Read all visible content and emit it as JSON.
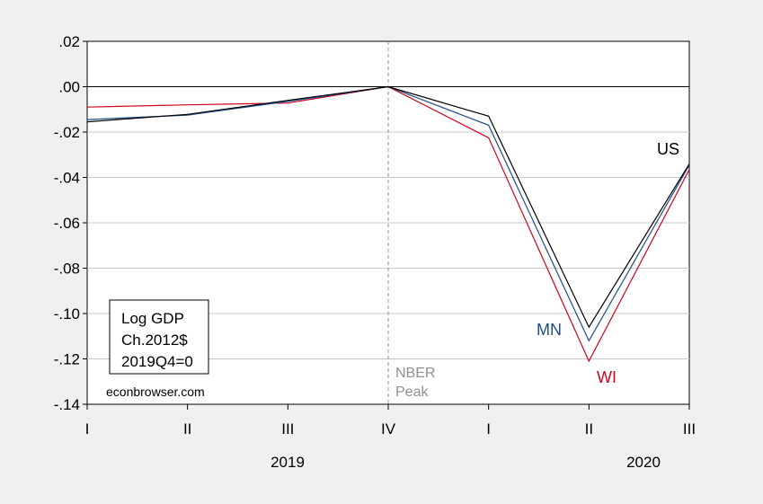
{
  "chart_data": {
    "type": "line",
    "x": [
      "I",
      "II",
      "III",
      "IV",
      "I",
      "II",
      "III"
    ],
    "year_labels": [
      "2019",
      "2020"
    ],
    "ylim": [
      -0.14,
      0.02
    ],
    "yticks": [
      ".02",
      ".00",
      "-.02",
      "-.04",
      "-.06",
      "-.08",
      "-.10",
      "-.12",
      "-.14"
    ],
    "grid": true,
    "series": [
      {
        "name": "US",
        "color": "#000000",
        "values": [
          -0.0155,
          -0.0122,
          -0.006,
          0.0,
          -0.013,
          -0.106,
          -0.034
        ]
      },
      {
        "name": "MN",
        "color": "#1f4e8c",
        "values": [
          -0.0145,
          -0.0125,
          -0.0065,
          0.0,
          -0.017,
          -0.112,
          -0.0345
        ]
      },
      {
        "name": "WI",
        "color": "#d0021b",
        "values": [
          -0.009,
          -0.008,
          -0.0072,
          0.0,
          -0.0225,
          -0.121,
          -0.0365
        ]
      }
    ],
    "annotation_nber": [
      "NBER",
      "Peak"
    ],
    "legend_box": [
      "Log GDP",
      "Ch.2012$",
      "2019Q4=0"
    ],
    "source": "econbrowser.com"
  },
  "style": {
    "nber_color": "#909090",
    "grid_color": "#c8c8c8",
    "zero_line_color": "#000000"
  }
}
